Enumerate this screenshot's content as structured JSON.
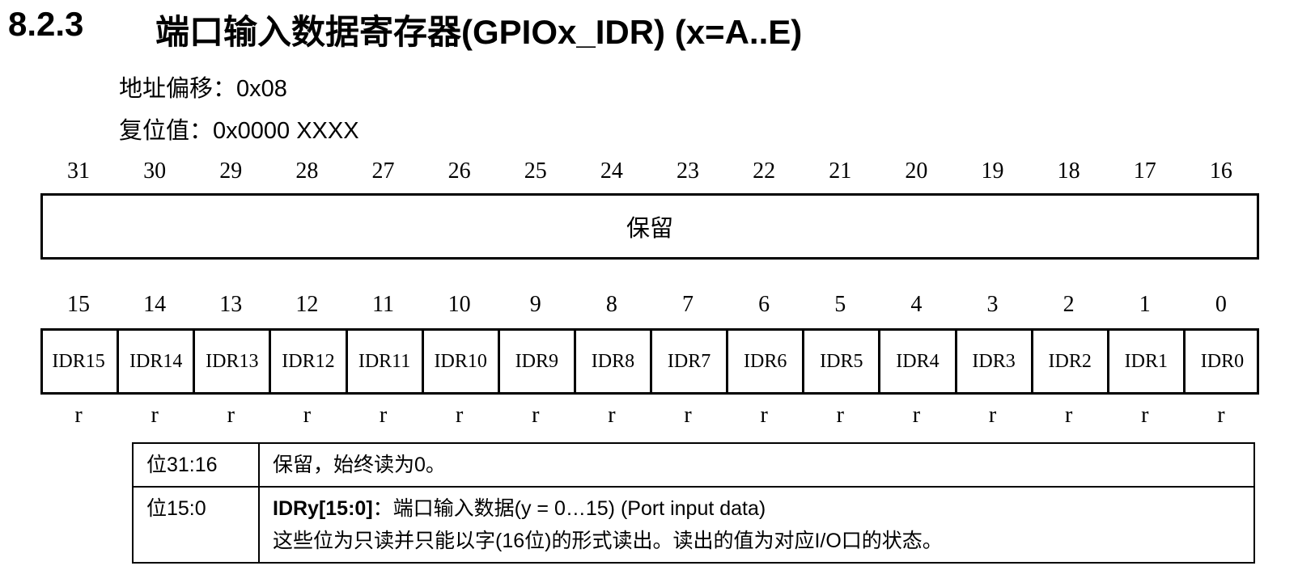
{
  "section": {
    "number": "8.2.3",
    "title": "端口输入数据寄存器(GPIOx_IDR) (x=A..E)"
  },
  "offset": "地址偏移：0x08",
  "reset_value": "复位值：0x0000 XXXX",
  "upper_bits": [
    "31",
    "30",
    "29",
    "28",
    "27",
    "26",
    "25",
    "24",
    "23",
    "22",
    "21",
    "20",
    "19",
    "18",
    "17",
    "16"
  ],
  "upper_field": "保留",
  "lower_bits": [
    "15",
    "14",
    "13",
    "12",
    "11",
    "10",
    "9",
    "8",
    "7",
    "6",
    "5",
    "4",
    "3",
    "2",
    "1",
    "0"
  ],
  "lower_fields": [
    "IDR15",
    "IDR14",
    "IDR13",
    "IDR12",
    "IDR11",
    "IDR10",
    "IDR9",
    "IDR8",
    "IDR7",
    "IDR6",
    "IDR5",
    "IDR4",
    "IDR3",
    "IDR2",
    "IDR1",
    "IDR0"
  ],
  "access": [
    "r",
    "r",
    "r",
    "r",
    "r",
    "r",
    "r",
    "r",
    "r",
    "r",
    "r",
    "r",
    "r",
    "r",
    "r",
    "r"
  ],
  "table": {
    "rows": [
      {
        "bits": "位31:16",
        "lines": [
          "保留，始终读为0。"
        ]
      },
      {
        "bits": "位15:0",
        "name": "IDRy[15:0]",
        "lines": [
          "：端口输入数据(y = 0…15) (Port input data)",
          "这些位为只读并只能以字(16位)的形式读出。读出的值为对应I/O口的状态。"
        ]
      }
    ]
  }
}
